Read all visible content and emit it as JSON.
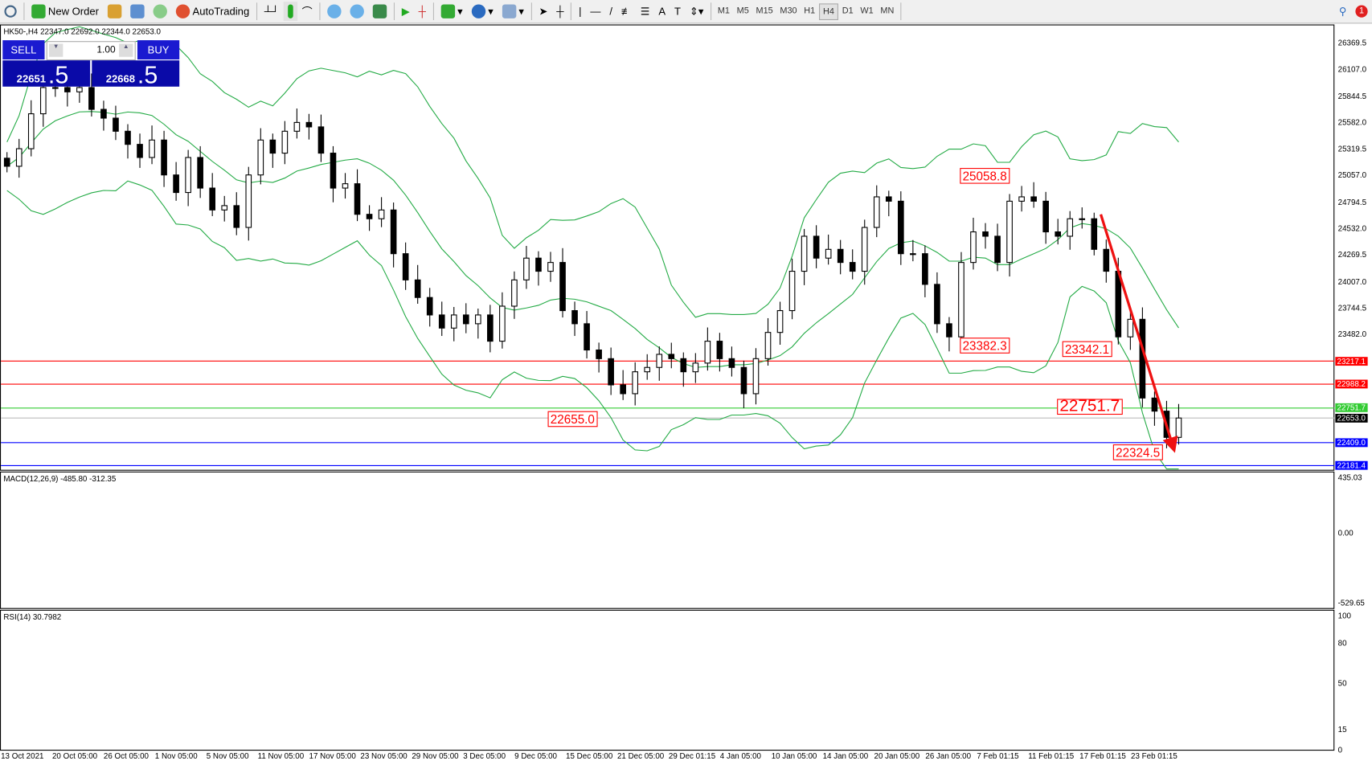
{
  "toolbar": {
    "new_order": "New Order",
    "autotrading": "AutoTrading",
    "timeframes": [
      "M1",
      "M5",
      "M15",
      "M30",
      "H1",
      "H4",
      "D1",
      "W1",
      "MN"
    ],
    "active_timeframe": "H4",
    "notification_count": "1"
  },
  "chart": {
    "header": "HK50-,H4  22347.0 22692.0 22344.0 22653.0",
    "trade_panel": {
      "sell": "SELL",
      "buy": "BUY",
      "volume": "1.00",
      "bid_main": "22651",
      "bid_big": ".5",
      "ask_main": "22668",
      "ask_big": ".5"
    },
    "price_axis": [
      "26369.5",
      "26107.0",
      "25844.5",
      "25582.0",
      "25319.5",
      "25057.0",
      "24794.5",
      "24532.0",
      "24269.5",
      "24007.0",
      "23744.5",
      "23482.0"
    ],
    "levels": [
      {
        "value": "23217.1",
        "color": "#ff0000"
      },
      {
        "value": "22988.2",
        "color": "#ff0000"
      },
      {
        "value": "22751.7",
        "color": "#33cc33"
      },
      {
        "value": "22653.0",
        "color": "#000000"
      },
      {
        "value": "22409.0",
        "color": "#0000ff"
      },
      {
        "value": "22181.4",
        "color": "#0000ff"
      }
    ],
    "annotations": [
      "25058.8",
      "23382.3",
      "23342.1",
      "22655.0",
      "22751.7",
      "22324.5"
    ],
    "closes": [
      25147,
      25321,
      25667,
      25927,
      25927,
      25884,
      25927,
      25711,
      25624,
      25494,
      25364,
      25234,
      25407,
      25061,
      24887,
      25234,
      24931,
      24714,
      24757,
      24541,
      25061,
      25407,
      25277,
      25494,
      25581,
      25537,
      25277,
      24931,
      24974,
      24671,
      24627,
      24714,
      24281,
      24021,
      23847,
      23674,
      23544,
      23674,
      23587,
      23674,
      23414,
      23761,
      24021,
      24237,
      24107,
      24194,
      23717,
      23587,
      23327,
      23241,
      22981,
      22894,
      23111,
      23154,
      23284,
      23241,
      23111,
      23197,
      23414,
      23241,
      23154,
      22894,
      23241,
      23501,
      23717,
      24107,
      24454,
      24237,
      24324,
      24194,
      24107,
      24541,
      24844,
      24801,
      24281,
      24281,
      23977,
      23587,
      23457,
      24194,
      24497,
      24454,
      24194,
      24801,
      24844,
      24801,
      24497,
      24454,
      24627,
      24627,
      24324,
      24107,
      23457,
      23631,
      22851,
      22721,
      22461,
      22653
    ],
    "colors": {
      "bollinger": "#22aa44",
      "bull": "#ffffff",
      "bear": "#000000",
      "arrow": "#ee1111"
    }
  },
  "macd": {
    "title": "MACD(12,26,9) -485.80 -312.35",
    "axis": [
      "435.03",
      "0.00",
      "-529.65"
    ]
  },
  "rsi": {
    "title": "RSI(14) 30.7982",
    "axis": [
      "100",
      "80",
      "50",
      "15",
      "0"
    ]
  },
  "time_axis": [
    "13 Oct 2021",
    "20 Oct 05:00",
    "26 Oct 05:00",
    "1 Nov 05:00",
    "5 Nov 05:00",
    "11 Nov 05:00",
    "17 Nov 05:00",
    "23 Nov 05:00",
    "29 Nov 05:00",
    "3 Dec 05:00",
    "9 Dec 05:00",
    "15 Dec 05:00",
    "21 Dec 05:00",
    "29 Dec 01:15",
    "4 Jan 05:00",
    "10 Jan 05:00",
    "14 Jan 05:00",
    "20 Jan 05:00",
    "26 Jan 05:00",
    "7 Feb 01:15",
    "11 Feb 01:15",
    "17 Feb 01:15",
    "23 Feb 01:15"
  ]
}
